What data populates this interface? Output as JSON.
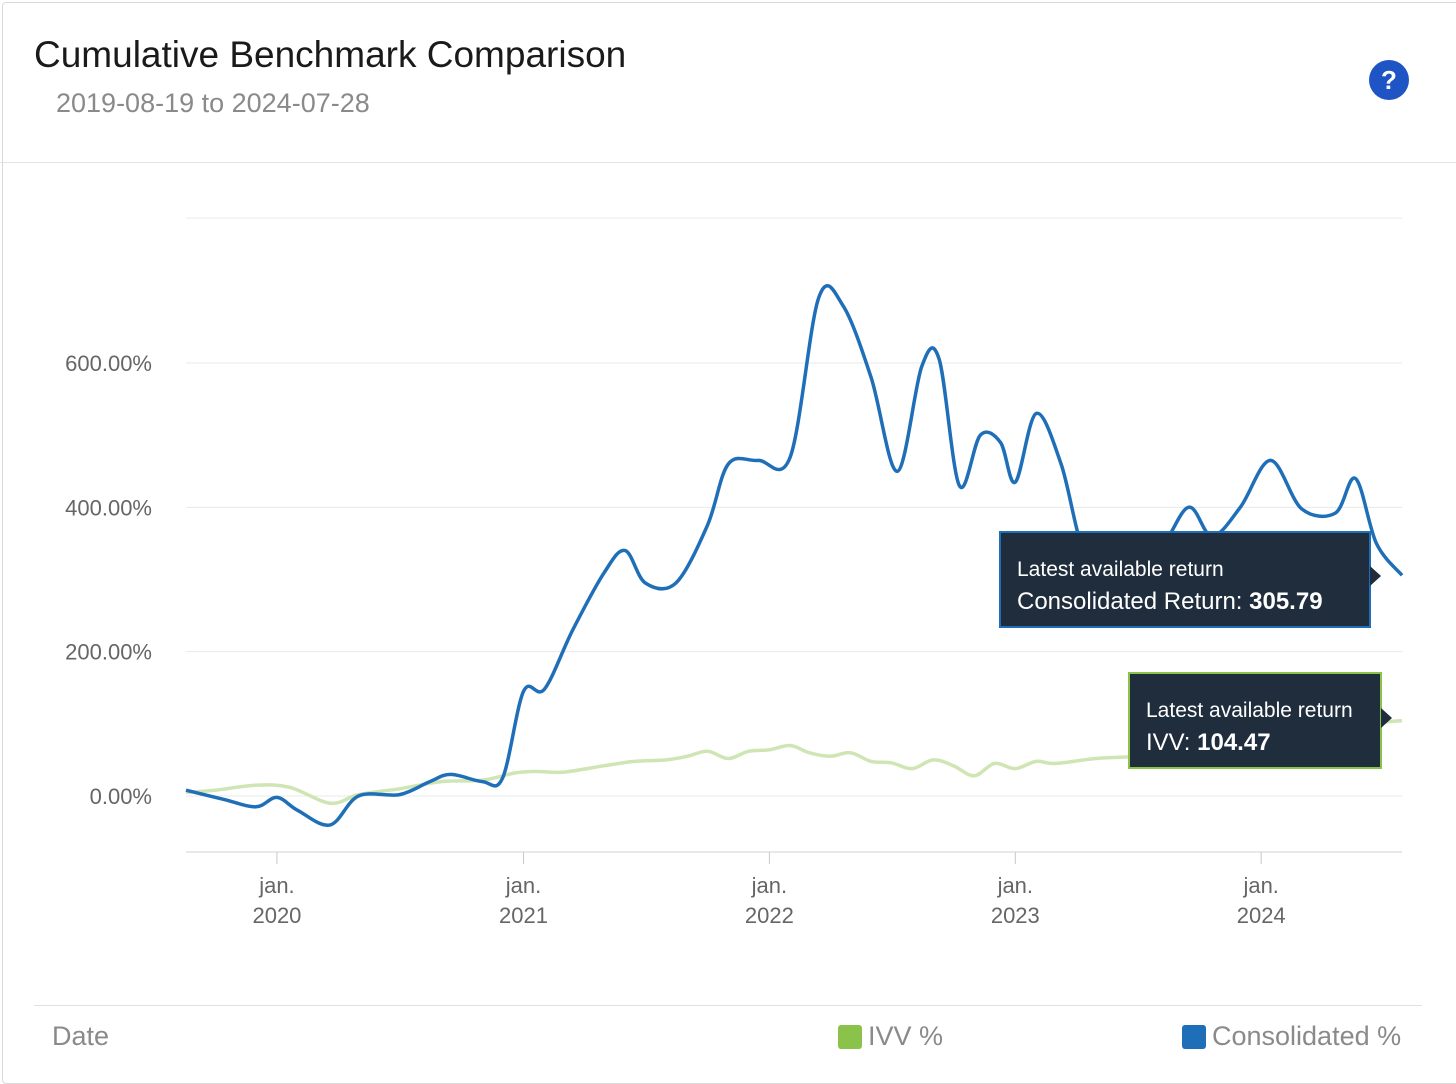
{
  "header": {
    "title": "Cumulative Benchmark Comparison",
    "subtitle": "2019-08-19 to 2024-07-28",
    "help_label": "?"
  },
  "footer": {
    "date_label": "Date"
  },
  "colors": {
    "consolidated": "#1f6fb8",
    "ivv": "#8bc34a",
    "ivv_line": "#cfe5b3",
    "tooltip_bg": "#1f2d3d",
    "help": "#1f54c4"
  },
  "tooltips": {
    "consolidated": {
      "caption": "Latest available return",
      "label": "Consolidated Return: ",
      "value": "305.79"
    },
    "ivv": {
      "caption": "Latest available return",
      "label": "IVV: ",
      "value": "104.47"
    }
  },
  "chart_data": {
    "type": "line",
    "title": "Cumulative Benchmark Comparison",
    "subtitle": "2019-08-19 to 2024-07-28",
    "xlabel": "Date",
    "ylabel": "",
    "x_range": [
      "2019-08-19",
      "2024-07-28"
    ],
    "ylim": [
      -80,
      800
    ],
    "y_ticks": [
      0,
      200,
      400,
      600
    ],
    "y_tick_labels": [
      "0.00%",
      "200.00%",
      "400.00%",
      "600.00%"
    ],
    "x_ticks": [
      {
        "date": "2020-01-01",
        "line1": "jan.",
        "line2": "2020"
      },
      {
        "date": "2021-01-01",
        "line1": "jan.",
        "line2": "2021"
      },
      {
        "date": "2022-01-01",
        "line1": "jan.",
        "line2": "2022"
      },
      {
        "date": "2023-01-01",
        "line1": "jan.",
        "line2": "2023"
      },
      {
        "date": "2024-01-01",
        "line1": "jan.",
        "line2": "2024"
      }
    ],
    "grid": true,
    "legend": "bottom",
    "series": [
      {
        "name": "IVV %",
        "points": [
          [
            "2019-08-19",
            5
          ],
          [
            "2019-10-01",
            8
          ],
          [
            "2019-12-01",
            15
          ],
          [
            "2020-01-20",
            12
          ],
          [
            "2020-03-20",
            -10
          ],
          [
            "2020-05-01",
            2
          ],
          [
            "2020-07-01",
            10
          ],
          [
            "2020-09-01",
            20
          ],
          [
            "2020-11-01",
            22
          ],
          [
            "2020-12-20",
            32
          ],
          [
            "2021-01-20",
            34
          ],
          [
            "2021-03-01",
            33
          ],
          [
            "2021-05-01",
            42
          ],
          [
            "2021-06-15",
            48
          ],
          [
            "2021-08-01",
            50
          ],
          [
            "2021-09-01",
            55
          ],
          [
            "2021-10-01",
            62
          ],
          [
            "2021-11-01",
            52
          ],
          [
            "2021-12-01",
            62
          ],
          [
            "2022-01-01",
            64
          ],
          [
            "2022-02-01",
            70
          ],
          [
            "2022-03-01",
            60
          ],
          [
            "2022-04-01",
            55
          ],
          [
            "2022-05-01",
            60
          ],
          [
            "2022-06-01",
            48
          ],
          [
            "2022-07-01",
            46
          ],
          [
            "2022-08-01",
            38
          ],
          [
            "2022-09-01",
            50
          ],
          [
            "2022-10-01",
            42
          ],
          [
            "2022-11-01",
            28
          ],
          [
            "2022-12-01",
            45
          ],
          [
            "2023-01-01",
            38
          ],
          [
            "2023-02-01",
            48
          ],
          [
            "2023-03-01",
            45
          ],
          [
            "2023-05-01",
            52
          ],
          [
            "2023-07-01",
            55
          ],
          [
            "2023-09-01",
            62
          ],
          [
            "2023-11-01",
            72
          ],
          [
            "2024-01-01",
            82
          ],
          [
            "2024-03-01",
            92
          ],
          [
            "2024-05-01",
            98
          ],
          [
            "2024-07-28",
            104.47
          ]
        ]
      },
      {
        "name": "Consolidated %",
        "points": [
          [
            "2019-08-19",
            8
          ],
          [
            "2019-10-15",
            -5
          ],
          [
            "2019-12-01",
            -15
          ],
          [
            "2020-01-01",
            -2
          ],
          [
            "2020-02-01",
            -20
          ],
          [
            "2020-03-20",
            -40
          ],
          [
            "2020-05-01",
            0
          ],
          [
            "2020-07-01",
            2
          ],
          [
            "2020-08-15",
            20
          ],
          [
            "2020-09-15",
            30
          ],
          [
            "2020-11-01",
            20
          ],
          [
            "2020-12-01",
            25
          ],
          [
            "2021-01-01",
            145
          ],
          [
            "2021-02-01",
            148
          ],
          [
            "2021-03-15",
            230
          ],
          [
            "2021-05-01",
            310
          ],
          [
            "2021-06-01",
            340
          ],
          [
            "2021-07-01",
            295
          ],
          [
            "2021-08-15",
            295
          ],
          [
            "2021-10-01",
            375
          ],
          [
            "2021-11-01",
            460
          ],
          [
            "2021-12-15",
            465
          ],
          [
            "2022-02-01",
            470
          ],
          [
            "2022-03-15",
            690
          ],
          [
            "2022-04-20",
            680
          ],
          [
            "2022-06-01",
            580
          ],
          [
            "2022-07-10",
            450
          ],
          [
            "2022-08-15",
            595
          ],
          [
            "2022-09-10",
            605
          ],
          [
            "2022-10-10",
            430
          ],
          [
            "2022-11-10",
            500
          ],
          [
            "2022-12-10",
            490
          ],
          [
            "2023-01-01",
            435
          ],
          [
            "2023-02-01",
            530
          ],
          [
            "2023-03-10",
            460
          ],
          [
            "2023-04-15",
            335
          ],
          [
            "2023-06-01",
            325
          ],
          [
            "2023-08-01",
            340
          ],
          [
            "2023-09-15",
            400
          ],
          [
            "2023-10-20",
            360
          ],
          [
            "2023-12-01",
            400
          ],
          [
            "2024-01-15",
            465
          ],
          [
            "2024-03-01",
            398
          ],
          [
            "2024-04-20",
            392
          ],
          [
            "2024-05-20",
            440
          ],
          [
            "2024-06-20",
            350
          ],
          [
            "2024-07-28",
            305.79
          ]
        ]
      }
    ]
  }
}
